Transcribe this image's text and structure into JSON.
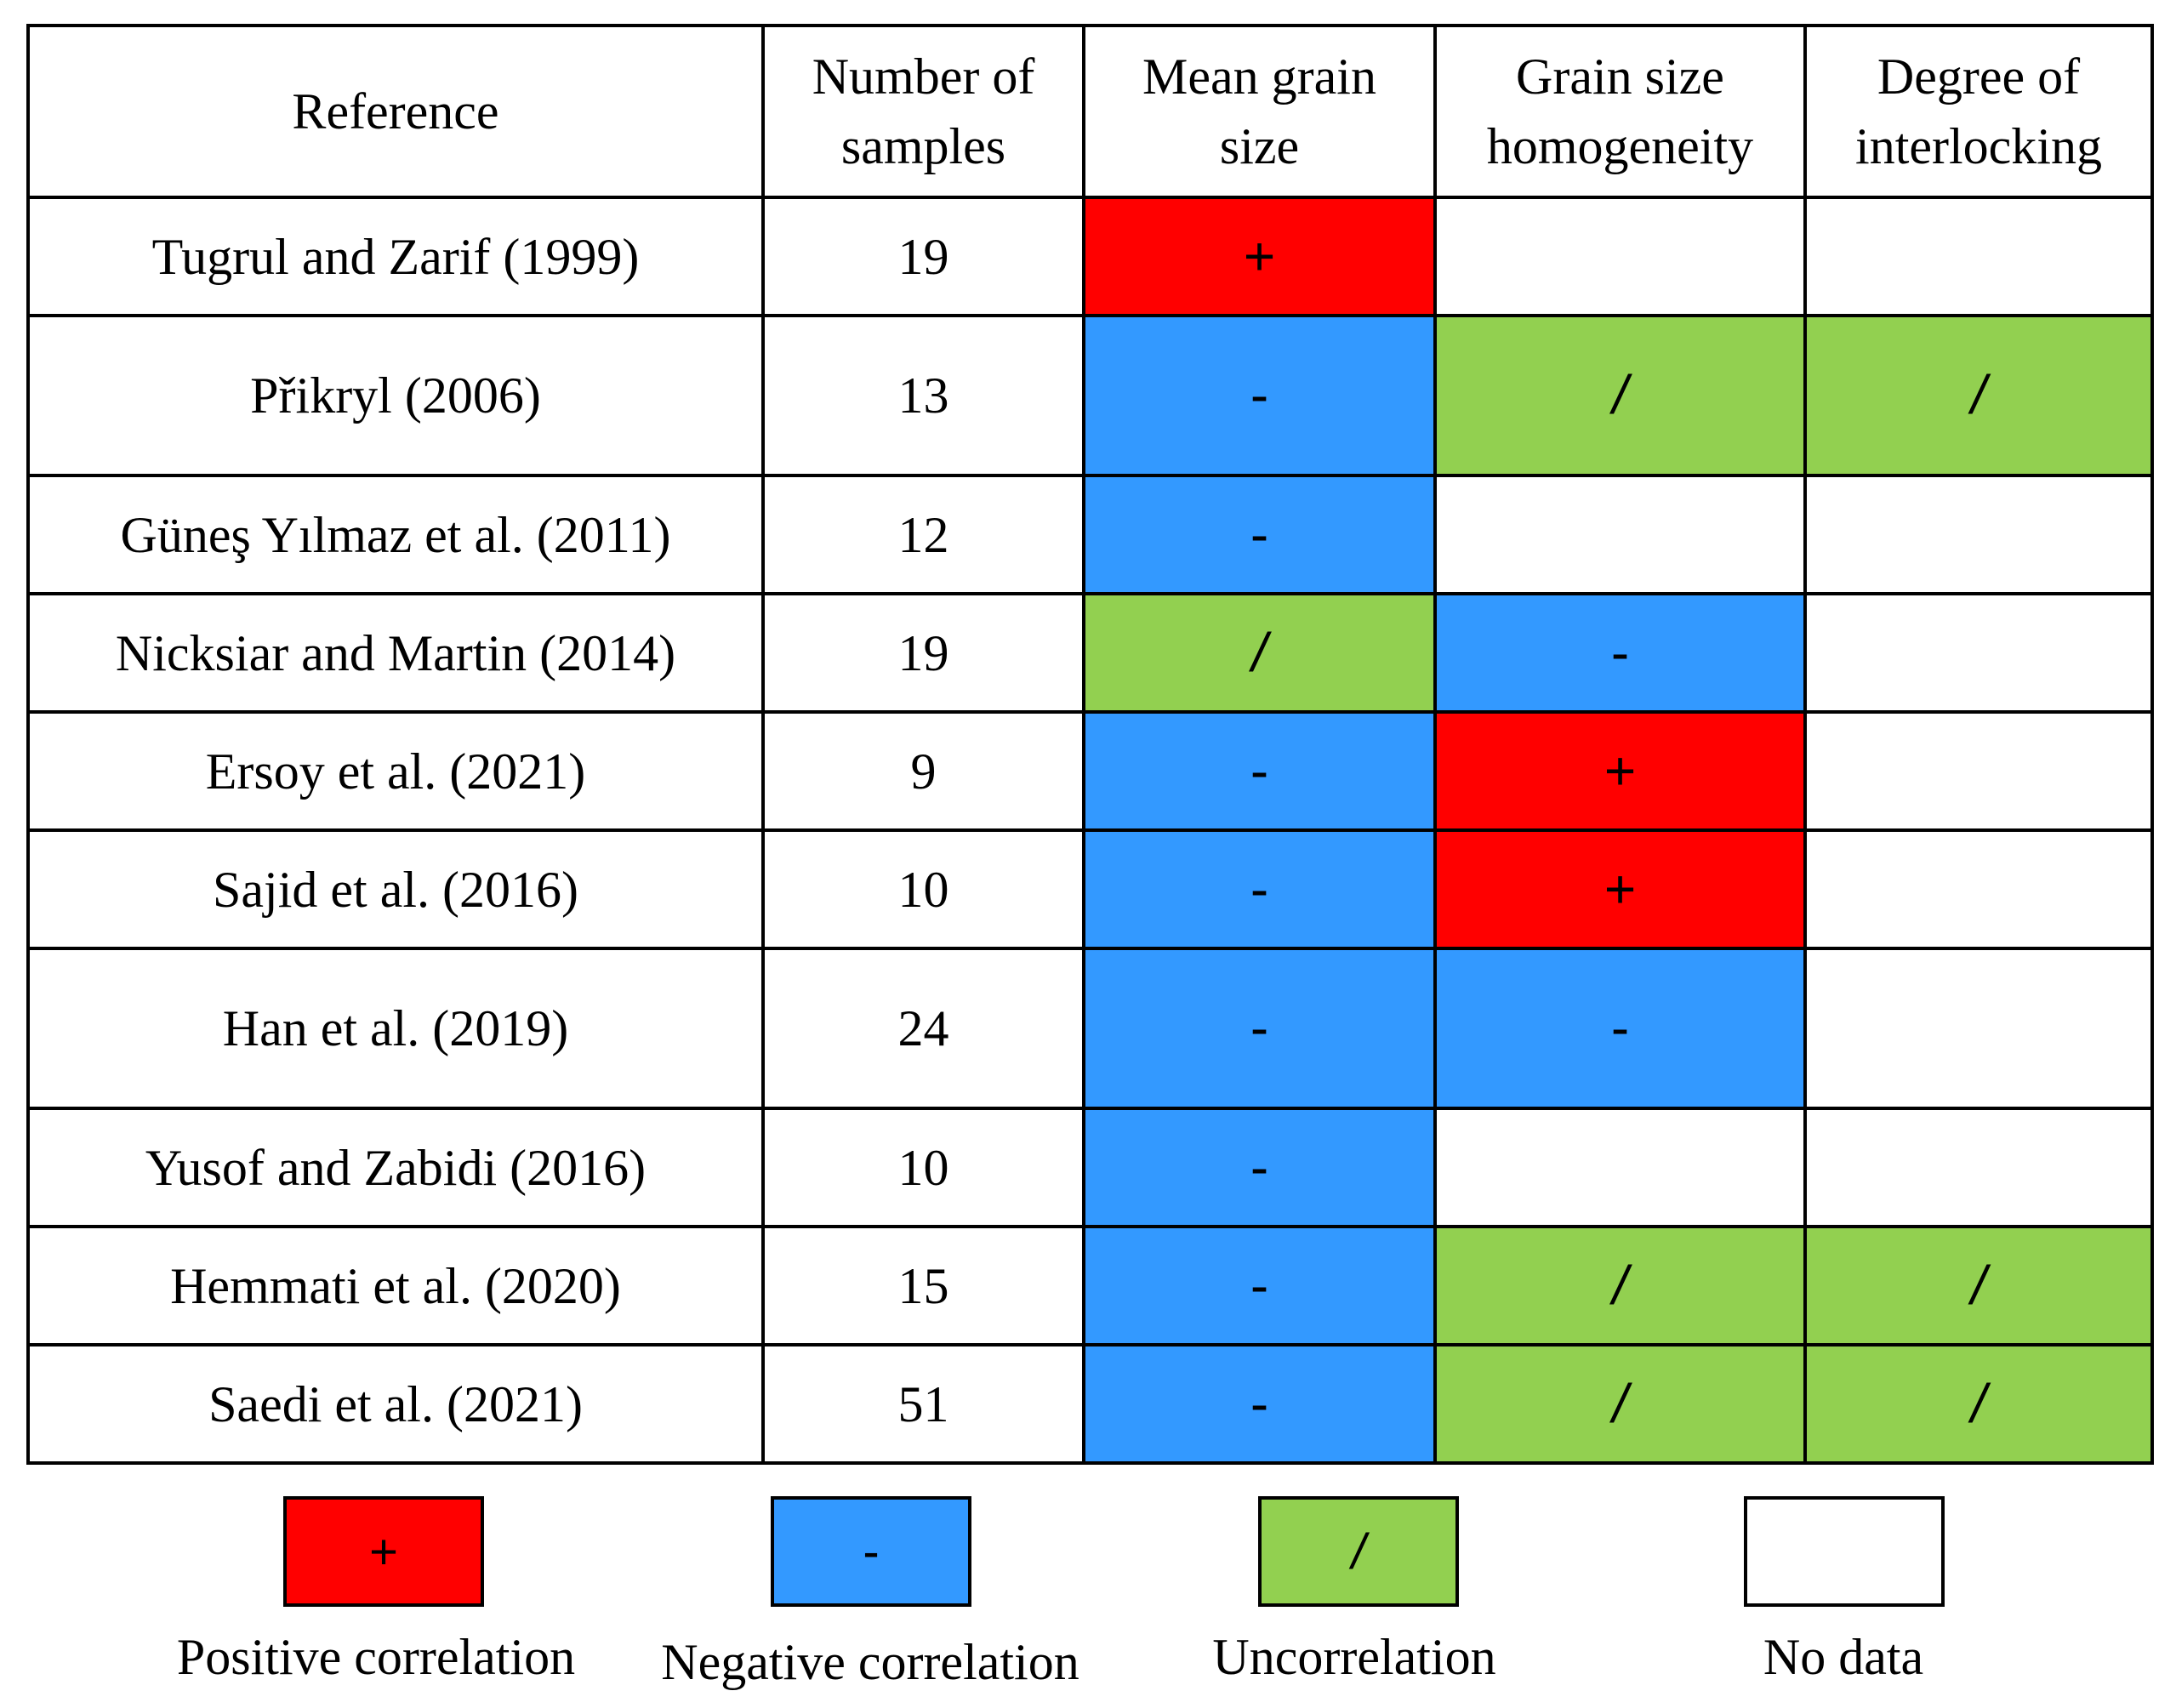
{
  "columns": {
    "reference": "Reference",
    "num_samples_l1": "Number of",
    "num_samples_l2": "samples",
    "mean_grain_l1": "Mean grain",
    "mean_grain_l2": "size",
    "homogeneity_l1": "Grain size",
    "homogeneity_l2": "homogeneity",
    "interlocking_l1": "Degree of",
    "interlocking_l2": "interlocking"
  },
  "rows": [
    {
      "reference": "Tugrul and Zarif (1999)",
      "samples": "19",
      "mean": "+",
      "homogeneity": "",
      "interlocking": ""
    },
    {
      "reference": "Přikryl  (2006)",
      "samples": "13",
      "mean": "-",
      "homogeneity": "/",
      "interlocking": "/"
    },
    {
      "reference": "Güneş Yılmaz et al. (2011)",
      "samples": "12",
      "mean": "-",
      "homogeneity": "",
      "interlocking": ""
    },
    {
      "reference": "Nicksiar and Martin (2014)",
      "samples": "19",
      "mean": "/",
      "homogeneity": "-",
      "interlocking": ""
    },
    {
      "reference": "Ersoy et al. (2021)",
      "samples": "9",
      "mean": "-",
      "homogeneity": "+",
      "interlocking": ""
    },
    {
      "reference": "Sajid et al. (2016)",
      "samples": "10",
      "mean": "-",
      "homogeneity": "+",
      "interlocking": ""
    },
    {
      "reference": "Han et al. (2019)",
      "samples": "24",
      "mean": "-",
      "homogeneity": "-",
      "interlocking": ""
    },
    {
      "reference": "Yusof and Zabidi (2016)",
      "samples": "10",
      "mean": "-",
      "homogeneity": "",
      "interlocking": ""
    },
    {
      "reference": "Hemmati et al. (2020)",
      "samples": "15",
      "mean": "-",
      "homogeneity": "/",
      "interlocking": "/"
    },
    {
      "reference": "Saedi et al. (2021)",
      "samples": "51",
      "mean": "-",
      "homogeneity": "/",
      "interlocking": "/"
    }
  ],
  "legend": {
    "positive": {
      "symbol": "+",
      "label": "Positive correlation",
      "color": "#ff0000"
    },
    "negative": {
      "symbol": "-",
      "label": "Negative correlation",
      "color": "#3399ff"
    },
    "uncorrelated": {
      "symbol": "/",
      "label": "Uncorrelation",
      "color": "#92d050"
    },
    "no_data": {
      "symbol": "",
      "label": "No data",
      "color": "#ffffff"
    }
  }
}
